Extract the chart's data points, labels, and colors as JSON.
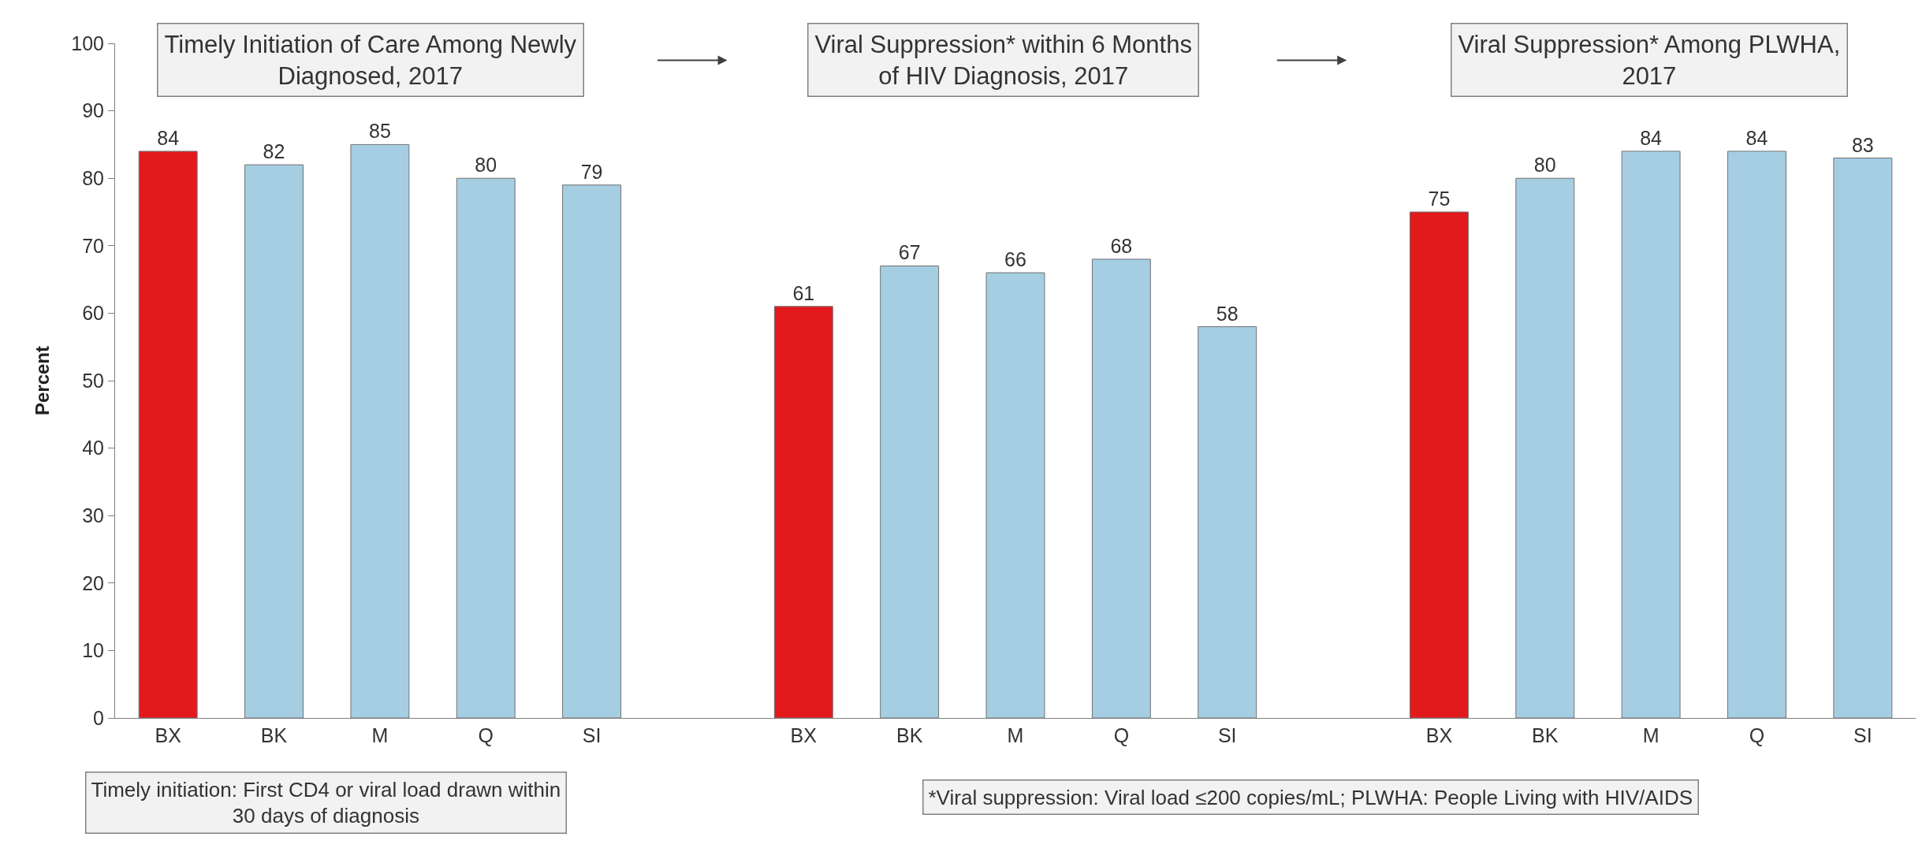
{
  "chart_data": {
    "type": "bar",
    "ylabel": "Percent",
    "categories": [
      "BX",
      "BK",
      "M",
      "Q",
      "SI",
      null,
      "BX",
      "BK",
      "M",
      "Q",
      "SI",
      null,
      "BX",
      "BK",
      "M",
      "Q",
      "SI"
    ],
    "values": [
      84,
      82,
      85,
      80,
      79,
      null,
      61,
      67,
      66,
      68,
      58,
      null,
      75,
      80,
      84,
      84,
      83
    ],
    "colors": [
      "#e31a1c",
      "#a6cee3",
      "#a6cee3",
      "#a6cee3",
      "#a6cee3",
      null,
      "#e31a1c",
      "#a6cee3",
      "#a6cee3",
      "#a6cee3",
      "#a6cee3",
      null,
      "#e31a1c",
      "#a6cee3",
      "#a6cee3",
      "#a6cee3",
      "#a6cee3"
    ],
    "data_labels": true,
    "ylim": [
      0,
      100
    ],
    "yticks": [
      0,
      10,
      20,
      30,
      40,
      50,
      60,
      70,
      80,
      90,
      100
    ],
    "annotations": [
      "Timely Initiation of Care Among Newly\nDiagnosed, 2017",
      "Viral Suppression* within 6 Months\nof HIV Diagnosis, 2017",
      "Viral Suppression* Among PLWHA,\n2017",
      "Timely initiation: First CD4 or viral load drawn within\n30 days of diagnosis",
      "*Viral suppression: Viral load ≤200 copies/mL; PLWHA: People Living with HIV/AIDS"
    ]
  }
}
